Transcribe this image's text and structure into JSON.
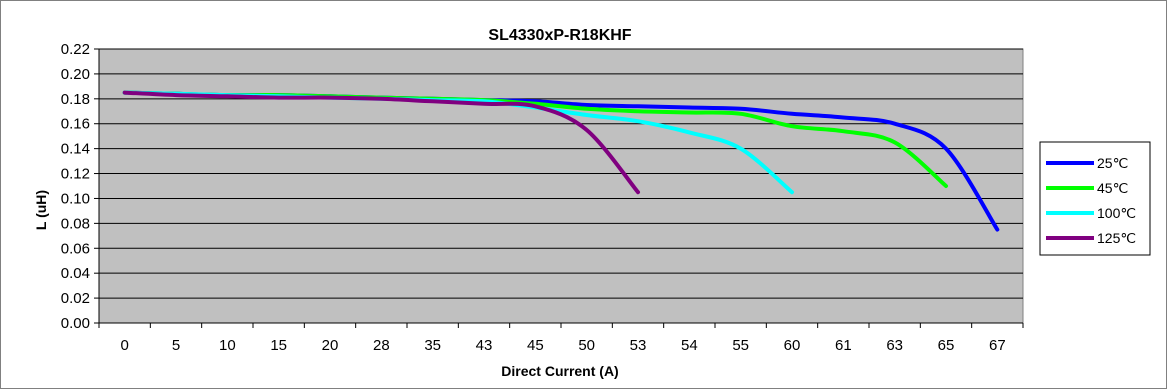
{
  "chart_data": {
    "type": "line",
    "title": "SL4330xP-R18KHF",
    "xlabel": "Direct Current (A)",
    "ylabel": "L (uH)",
    "ylim": [
      0,
      0.22
    ],
    "y_ticks": [
      "0.00",
      "0.02",
      "0.04",
      "0.06",
      "0.08",
      "0.10",
      "0.12",
      "0.14",
      "0.16",
      "0.18",
      "0.20",
      "0.22"
    ],
    "categories": [
      "0",
      "5",
      "10",
      "15",
      "20",
      "28",
      "35",
      "43",
      "45",
      "50",
      "53",
      "54",
      "55",
      "60",
      "61",
      "63",
      "65",
      "67"
    ],
    "grid": true,
    "legend_position": "right",
    "series": [
      {
        "name": "25℃",
        "color": "#0000ff",
        "points": [
          [
            0,
            0.185
          ],
          [
            5,
            0.184
          ],
          [
            10,
            0.183
          ],
          [
            15,
            0.183
          ],
          [
            20,
            0.182
          ],
          [
            28,
            0.181
          ],
          [
            35,
            0.18
          ],
          [
            43,
            0.179
          ],
          [
            45,
            0.178
          ],
          [
            50,
            0.175
          ],
          [
            53,
            0.174
          ],
          [
            54,
            0.173
          ],
          [
            55,
            0.172
          ],
          [
            60,
            0.168
          ],
          [
            61,
            0.165
          ],
          [
            63,
            0.16
          ],
          [
            65,
            0.14
          ],
          [
            67,
            0.075
          ]
        ]
      },
      {
        "name": "45℃",
        "color": "#00ff00",
        "points": [
          [
            0,
            0.185
          ],
          [
            5,
            0.184
          ],
          [
            10,
            0.183
          ],
          [
            15,
            0.183
          ],
          [
            20,
            0.182
          ],
          [
            28,
            0.181
          ],
          [
            35,
            0.18
          ],
          [
            43,
            0.179
          ],
          [
            45,
            0.176
          ],
          [
            50,
            0.172
          ],
          [
            53,
            0.17
          ],
          [
            54,
            0.169
          ],
          [
            55,
            0.168
          ],
          [
            60,
            0.158
          ],
          [
            61,
            0.154
          ],
          [
            63,
            0.145
          ],
          [
            65,
            0.11
          ]
        ]
      },
      {
        "name": "100℃",
        "color": "#00ffff",
        "points": [
          [
            0,
            0.185
          ],
          [
            5,
            0.184
          ],
          [
            10,
            0.183
          ],
          [
            15,
            0.182
          ],
          [
            20,
            0.181
          ],
          [
            28,
            0.18
          ],
          [
            35,
            0.179
          ],
          [
            43,
            0.178
          ],
          [
            45,
            0.173
          ],
          [
            50,
            0.167
          ],
          [
            53,
            0.162
          ],
          [
            54,
            0.153
          ],
          [
            55,
            0.14
          ],
          [
            60,
            0.105
          ]
        ]
      },
      {
        "name": "125℃",
        "color": "#800080",
        "points": [
          [
            0,
            0.185
          ],
          [
            5,
            0.183
          ],
          [
            10,
            0.182
          ],
          [
            15,
            0.181
          ],
          [
            20,
            0.181
          ],
          [
            28,
            0.18
          ],
          [
            35,
            0.178
          ],
          [
            43,
            0.176
          ],
          [
            45,
            0.174
          ],
          [
            50,
            0.155
          ],
          [
            53,
            0.105
          ]
        ]
      }
    ]
  }
}
